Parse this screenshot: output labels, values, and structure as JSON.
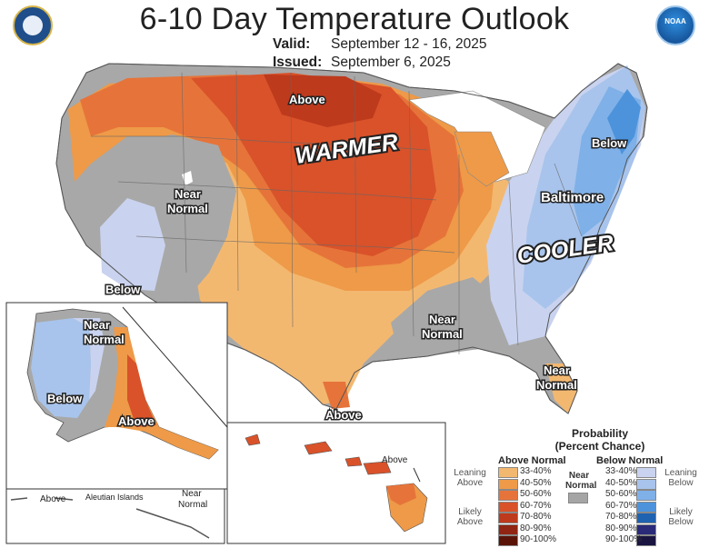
{
  "header": {
    "title": "6-10 Day Temperature Outlook",
    "valid_label": "Valid:",
    "valid_value": "September 12 - 16, 2025",
    "issued_label": "Issued:",
    "issued_value": "September 6, 2025"
  },
  "logos": {
    "left": "doc-seal-icon",
    "right": "noaa-logo-icon",
    "right_text": "NOAA"
  },
  "map_labels": {
    "above_north": "Above",
    "warmer": "WARMER",
    "below_northeast": "Below",
    "baltimore": "Baltimore",
    "cooler": "COOLER",
    "near_normal_west_1": "Near",
    "near_normal_west_2": "Normal",
    "below_west": "Below",
    "near_normal_south_1": "Near",
    "near_normal_south_2": "Normal",
    "near_normal_florida_1": "Near",
    "near_normal_florida_2": "Normal",
    "above_texas": "Above",
    "alaska_near_1": "Near",
    "alaska_near_2": "Normal",
    "alaska_below": "Below",
    "alaska_above": "Above",
    "aleutian_above": "Above",
    "aleutian_islands": "Aleutian Islands",
    "aleutian_near_1": "Near",
    "aleutian_near_2": "Normal",
    "hawaii_above": "Above"
  },
  "legend": {
    "title_1": "Probability",
    "title_2": "(Percent Chance)",
    "above_head": "Above Normal",
    "below_head": "Below Normal",
    "near_1": "Near",
    "near_2": "Normal",
    "leaning_above_1": "Leaning",
    "leaning_above_2": "Above",
    "likely_above_1": "Likely",
    "likely_above_2": "Above",
    "leaning_below_1": "Leaning",
    "leaning_below_2": "Below",
    "likely_below_1": "Likely",
    "likely_below_2": "Below",
    "above_items": [
      {
        "label": "33-40%",
        "color": "#f3b870"
      },
      {
        "label": "40-50%",
        "color": "#ee9a48"
      },
      {
        "label": "50-60%",
        "color": "#e6743a"
      },
      {
        "label": "60-70%",
        "color": "#d9522a"
      },
      {
        "label": "70-80%",
        "color": "#bd3a1c"
      },
      {
        "label": "80-90%",
        "color": "#8f2512"
      },
      {
        "label": "90-100%",
        "color": "#5a1407"
      }
    ],
    "below_items": [
      {
        "label": "33-40%",
        "color": "#c9d3ef"
      },
      {
        "label": "40-50%",
        "color": "#a8c4ec"
      },
      {
        "label": "50-60%",
        "color": "#7fb0e8"
      },
      {
        "label": "60-70%",
        "color": "#4c93dc"
      },
      {
        "label": "70-80%",
        "color": "#1f62b0"
      },
      {
        "label": "80-90%",
        "color": "#2a2a78"
      },
      {
        "label": "90-100%",
        "color": "#1a1440"
      }
    ],
    "near_color": "#a5a5a5"
  }
}
